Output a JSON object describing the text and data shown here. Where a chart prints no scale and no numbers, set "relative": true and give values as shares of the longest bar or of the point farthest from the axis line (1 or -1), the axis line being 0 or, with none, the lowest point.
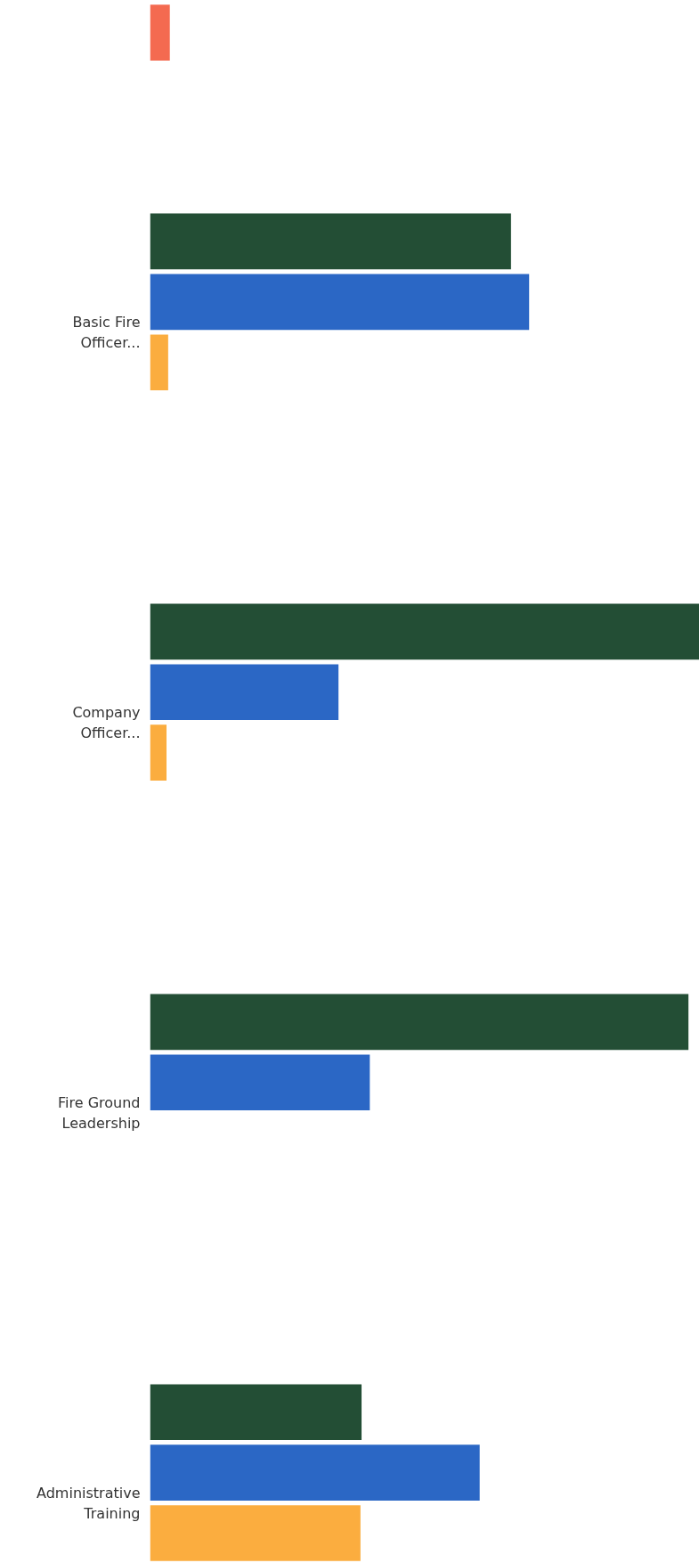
{
  "chart_data": {
    "type": "bar",
    "orientation": "horizontal",
    "relative": true,
    "grid": false,
    "categories": [
      null,
      "Basic Fire Officer...",
      "Company Officer...",
      "Fire Ground Leadership",
      "Administrative Training"
    ],
    "series": [
      {
        "color": "#234e35",
        "values": [
          null,
          0.657,
          1,
          0.98,
          0.385
        ]
      },
      {
        "color": "#2b67c5",
        "values": [
          null,
          0.69,
          0.343,
          0.4,
          0.6
        ]
      },
      {
        "color": "#fbad3f",
        "values": [
          null,
          0.033,
          0.03,
          null,
          0.383
        ]
      },
      {
        "color": "#f46a50",
        "values": [
          0.036,
          null,
          null,
          null,
          null
        ]
      }
    ]
  }
}
